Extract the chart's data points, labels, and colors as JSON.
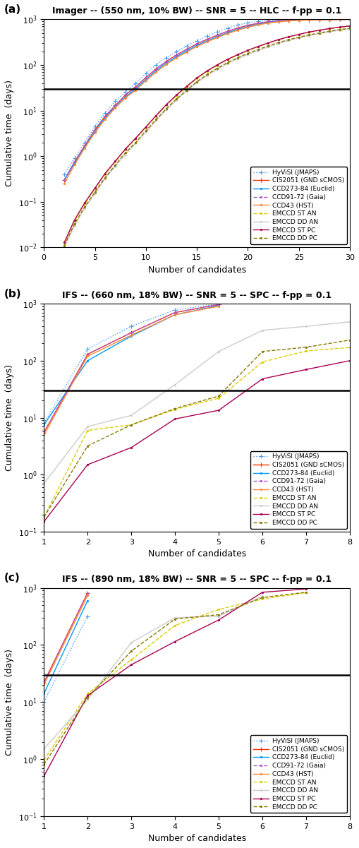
{
  "panels": [
    {
      "label": "(a)",
      "title": "Imager -- (550 nm, 10% BW) -- SNR = 5 -- HLC -- f-pp = 0.1",
      "xmin": 0,
      "xmax": 30,
      "ymin": 0.01,
      "ymax": 1000,
      "xlabel": "Number of candidates",
      "ylabel": "Cumulative time  (days)",
      "hline": 30,
      "xticks": [
        0,
        5,
        10,
        15,
        20,
        25,
        30
      ],
      "series": [
        {
          "name": "HyViSI (JMAPS)",
          "color": "#4499ff",
          "linestyle": ":",
          "marker": "+",
          "x": [
            2,
            3,
            4,
            5,
            6,
            7,
            8,
            9,
            10,
            11,
            12,
            13,
            14,
            15,
            16,
            17,
            18,
            19,
            20,
            21,
            22,
            23,
            24,
            25,
            26,
            27,
            28,
            29,
            30
          ],
          "y": [
            0.4,
            0.9,
            2.0,
            4.5,
            9,
            16,
            26,
            40,
            65,
            100,
            145,
            195,
            260,
            340,
            430,
            530,
            640,
            750,
            840,
            900,
            940,
            965,
            978,
            987,
            992,
            996,
            998,
            999,
            1000
          ]
        },
        {
          "name": "CIS2051 (GND sCMOS)",
          "color": "#ff3300",
          "linestyle": "-",
          "marker": "+",
          "x": [
            2,
            3,
            4,
            5,
            6,
            7,
            8,
            9,
            10,
            11,
            12,
            13,
            14,
            15,
            16,
            17,
            18,
            19,
            20,
            21,
            22,
            23,
            24,
            25,
            26,
            27,
            28,
            29,
            30
          ],
          "y": [
            0.3,
            0.75,
            1.7,
            3.8,
            7.5,
            13,
            22,
            33,
            53,
            82,
            120,
            165,
            220,
            290,
            365,
            450,
            545,
            645,
            740,
            820,
            882,
            925,
            955,
            972,
            983,
            990,
            994,
            997,
            999
          ]
        },
        {
          "name": "CCD273-84 (Euclid)",
          "color": "#0099ff",
          "linestyle": "-",
          "marker": ".",
          "x": [
            2,
            3,
            4,
            5,
            6,
            7,
            8,
            9,
            10,
            11,
            12,
            13,
            14,
            15,
            16,
            17,
            18,
            19,
            20,
            21,
            22,
            23,
            24,
            25,
            26,
            27,
            28,
            29,
            30
          ],
          "y": [
            0.3,
            0.7,
            1.6,
            3.5,
            7,
            12,
            20,
            30,
            48,
            75,
            110,
            152,
            203,
            268,
            338,
            415,
            505,
            600,
            695,
            778,
            848,
            900,
            935,
            960,
            975,
            985,
            991,
            995,
            998
          ]
        },
        {
          "name": "CCD91-72 (Gaia)",
          "color": "#aa55cc",
          "linestyle": "--",
          "marker": ".",
          "x": [
            2,
            3,
            4,
            5,
            6,
            7,
            8,
            9,
            10,
            11,
            12,
            13,
            14,
            15,
            16,
            17,
            18,
            19,
            20,
            21,
            22,
            23,
            24,
            25,
            26,
            27,
            28,
            29,
            30
          ],
          "y": [
            0.3,
            0.75,
            1.7,
            3.8,
            7.5,
            13,
            22,
            33,
            53,
            82,
            120,
            165,
            220,
            290,
            365,
            450,
            545,
            645,
            740,
            820,
            882,
            925,
            955,
            972,
            983,
            990,
            994,
            997,
            999
          ]
        },
        {
          "name": "CCD43 (HST)",
          "color": "#ff8833",
          "linestyle": "-",
          "marker": ".",
          "x": [
            2,
            3,
            4,
            5,
            6,
            7,
            8,
            9,
            10,
            11,
            12,
            13,
            14,
            15,
            16,
            17,
            18,
            19,
            20,
            21,
            22,
            23,
            24,
            25,
            26,
            27,
            28,
            29,
            30
          ],
          "y": [
            0.25,
            0.65,
            1.5,
            3.3,
            6.5,
            11.5,
            19,
            28,
            45,
            70,
            103,
            143,
            192,
            254,
            322,
            398,
            485,
            578,
            672,
            756,
            830,
            882,
            924,
            952,
            970,
            982,
            989,
            994,
            997
          ]
        },
        {
          "name": "EMCCD ST AN",
          "color": "#ddcc00",
          "linestyle": "--",
          "marker": ".",
          "x": [
            2,
            3,
            4,
            5,
            6,
            7,
            8,
            9,
            10,
            11,
            12,
            13,
            14,
            15,
            16,
            17,
            18,
            19,
            20,
            21,
            22,
            23,
            24,
            25,
            26,
            27,
            28,
            29,
            30
          ],
          "y": [
            0.012,
            0.038,
            0.09,
            0.19,
            0.4,
            0.75,
            1.4,
            2.4,
            4.2,
            7.5,
            13,
            21,
            33,
            50,
            72,
            98,
            130,
            165,
            205,
            250,
            300,
            355,
            410,
            465,
            520,
            572,
            622,
            668,
            712
          ]
        },
        {
          "name": "EMCCD DD AN",
          "color": "#cccccc",
          "linestyle": "-",
          "marker": ".",
          "x": [
            2,
            3,
            4,
            5,
            6,
            7,
            8,
            9,
            10,
            11,
            12,
            13,
            14,
            15,
            16,
            17,
            18,
            19,
            20,
            21,
            22,
            23,
            24,
            25,
            26,
            27,
            28,
            29,
            30
          ],
          "y": [
            0.01,
            0.03,
            0.072,
            0.15,
            0.32,
            0.6,
            1.1,
            1.9,
            3.4,
            6,
            10.5,
            17,
            27,
            41,
            59,
            80,
            107,
            136,
            170,
            207,
            249,
            295,
            342,
            390,
            438,
            485,
            532,
            577,
            620
          ]
        },
        {
          "name": "EMCCD ST PC",
          "color": "#aa0055",
          "linestyle": "-",
          "marker": ".",
          "x": [
            2,
            3,
            4,
            5,
            6,
            7,
            8,
            9,
            10,
            11,
            12,
            13,
            14,
            15,
            16,
            17,
            18,
            19,
            20,
            21,
            22,
            23,
            24,
            25,
            26,
            27,
            28,
            29,
            30
          ],
          "y": [
            0.013,
            0.04,
            0.095,
            0.2,
            0.42,
            0.78,
            1.45,
            2.5,
            4.4,
            7.8,
            13.5,
            22,
            34,
            52,
            74,
            101,
            133,
            168,
            210,
            255,
            305,
            360,
            415,
            470,
            526,
            578,
            628,
            674,
            718
          ]
        },
        {
          "name": "EMCCD DD PC",
          "color": "#887700",
          "linestyle": "--",
          "marker": ".",
          "x": [
            2,
            3,
            4,
            5,
            6,
            7,
            8,
            9,
            10,
            11,
            12,
            13,
            14,
            15,
            16,
            17,
            18,
            19,
            20,
            21,
            22,
            23,
            24,
            25,
            26,
            27,
            28,
            29,
            30
          ],
          "y": [
            0.011,
            0.033,
            0.078,
            0.163,
            0.34,
            0.64,
            1.2,
            2.0,
            3.6,
            6.4,
            11,
            18,
            28,
            43,
            62,
            85,
            113,
            144,
            180,
            218,
            262,
            310,
            358,
            407,
            456,
            503,
            550,
            595,
            638
          ]
        }
      ]
    },
    {
      "label": "(b)",
      "title": "IFS -- (660 nm, 18% BW) -- SNR = 5 -- SPC -- f-pp = 0.1",
      "xmin": 1,
      "xmax": 8,
      "ymin": 0.1,
      "ymax": 1000,
      "xlabel": "Number of candidates",
      "ylabel": "Cumulative time  (days)",
      "hline": 30,
      "xticks": [
        1,
        2,
        3,
        4,
        5,
        6,
        7,
        8
      ],
      "series": [
        {
          "name": "HyViSI (JMAPS)",
          "color": "#4499ff",
          "linestyle": ":",
          "marker": "+",
          "x": [
            1,
            2,
            3,
            4,
            5
          ],
          "y": [
            8.0,
            160,
            400,
            780,
            980
          ]
        },
        {
          "name": "CIS2051 (GND sCMOS)",
          "color": "#ff3300",
          "linestyle": "-",
          "marker": "+",
          "x": [
            1,
            2,
            3,
            4,
            5
          ],
          "y": [
            5.5,
            130,
            310,
            700,
            960
          ]
        },
        {
          "name": "CCD273-84 (Euclid)",
          "color": "#0099ff",
          "linestyle": "-",
          "marker": ".",
          "x": [
            1,
            2,
            3,
            4,
            5
          ],
          "y": [
            7.5,
            100,
            270,
            640,
            920
          ]
        },
        {
          "name": "CCD91-72 (Gaia)",
          "color": "#aa55cc",
          "linestyle": "--",
          "marker": ".",
          "x": [
            1,
            2,
            3,
            4,
            5
          ],
          "y": [
            5.5,
            130,
            310,
            700,
            960
          ]
        },
        {
          "name": "CCD43 (HST)",
          "color": "#ff8833",
          "linestyle": "-",
          "marker": ".",
          "x": [
            1,
            2,
            3,
            4,
            5
          ],
          "y": [
            5.0,
            120,
            280,
            640,
            900
          ]
        },
        {
          "name": "EMCCD ST AN",
          "color": "#ddcc00",
          "linestyle": "--",
          "marker": ".",
          "x": [
            1,
            2,
            3,
            4,
            5,
            6,
            7,
            8
          ],
          "y": [
            0.18,
            6.0,
            7.5,
            14,
            22,
            95,
            148,
            170
          ]
        },
        {
          "name": "EMCCD DD AN",
          "color": "#cccccc",
          "linestyle": "-",
          "marker": ".",
          "x": [
            1,
            2,
            3,
            4,
            5,
            6,
            7,
            8
          ],
          "y": [
            0.7,
            7.0,
            11,
            38,
            145,
            340,
            400,
            480
          ]
        },
        {
          "name": "EMCCD ST PC",
          "color": "#aa0055",
          "linestyle": "-",
          "marker": ".",
          "x": [
            1,
            2,
            3,
            4,
            5,
            6,
            7,
            8
          ],
          "y": [
            0.15,
            1.5,
            3.0,
            9.5,
            13.5,
            48,
            70,
            100
          ]
        },
        {
          "name": "EMCCD DD PC",
          "color": "#887700",
          "linestyle": "--",
          "marker": ".",
          "x": [
            1,
            2,
            3,
            4,
            5,
            6,
            7,
            8
          ],
          "y": [
            0.18,
            3.2,
            7.5,
            14.5,
            24,
            145,
            172,
            230
          ]
        }
      ]
    },
    {
      "label": "(c)",
      "title": "IFS -- (890 nm, 18% BW) -- SNR = 5 -- SPC -- f-pp = 0.1",
      "xmin": 1,
      "xmax": 8,
      "ymin": 0.1,
      "ymax": 1000,
      "xlabel": "Number of candidates",
      "ylabel": "Cumulative time  (days)",
      "hline": 30,
      "xticks": [
        1,
        2,
        3,
        4,
        5,
        6,
        7,
        8
      ],
      "series": [
        {
          "name": "HyViSI (JMAPS)",
          "color": "#4499ff",
          "linestyle": ":",
          "marker": "+",
          "x": [
            1,
            2
          ],
          "y": [
            10.0,
            320
          ]
        },
        {
          "name": "CIS2051 (GND sCMOS)",
          "color": "#ff3300",
          "linestyle": "-",
          "marker": "+",
          "x": [
            1,
            2
          ],
          "y": [
            22.0,
            820
          ]
        },
        {
          "name": "CCD273-84 (Euclid)",
          "color": "#0099ff",
          "linestyle": "-",
          "marker": ".",
          "x": [
            1,
            2
          ],
          "y": [
            14.0,
            600
          ]
        },
        {
          "name": "CCD91-72 (Gaia)",
          "color": "#aa55cc",
          "linestyle": "--",
          "marker": ".",
          "x": [
            1,
            2
          ],
          "y": [
            22.0,
            820
          ]
        },
        {
          "name": "CCD43 (HST)",
          "color": "#ff8833",
          "linestyle": "-",
          "marker": ".",
          "x": [
            1,
            2
          ],
          "y": [
            20.0,
            740
          ]
        },
        {
          "name": "EMCCD ST AN",
          "color": "#ddcc00",
          "linestyle": "--",
          "marker": ".",
          "x": [
            1,
            2,
            3,
            4,
            5,
            6,
            7
          ],
          "y": [
            0.95,
            14,
            55,
            220,
            420,
            640,
            830
          ]
        },
        {
          "name": "EMCCD DD AN",
          "color": "#cccccc",
          "linestyle": "-",
          "marker": ".",
          "x": [
            1,
            2,
            3,
            4,
            5,
            6
          ],
          "y": [
            1.5,
            11,
            110,
            300,
            320,
            720
          ]
        },
        {
          "name": "EMCCD ST PC",
          "color": "#aa0055",
          "linestyle": "-",
          "marker": ".",
          "x": [
            1,
            2,
            3,
            4,
            5,
            6,
            7
          ],
          "y": [
            0.5,
            13,
            45,
            115,
            275,
            840,
            960
          ]
        },
        {
          "name": "EMCCD DD PC",
          "color": "#887700",
          "linestyle": "--",
          "marker": ".",
          "x": [
            1,
            2,
            3,
            4,
            5,
            6,
            7
          ],
          "y": [
            0.8,
            12,
            78,
            285,
            340,
            680,
            840
          ]
        }
      ]
    }
  ],
  "legend_labels": [
    "HyViSI (JMAPS)",
    "CIS2051 (GND sCMOS)",
    "CCD273-84 (Euclid)",
    "CCD91-72 (Gaia)",
    "CCD43 (HST)",
    "EMCCD ST AN",
    "EMCCD DD AN",
    "EMCCD ST PC",
    "EMCCD DD PC"
  ],
  "legend_colors": [
    "#4499ff",
    "#ff3300",
    "#0099ff",
    "#aa55cc",
    "#ff8833",
    "#ddcc00",
    "#cccccc",
    "#aa0055",
    "#887700"
  ],
  "legend_linestyles": [
    ":",
    "-",
    "-",
    "--",
    "-",
    "--",
    "-",
    "-",
    "--"
  ],
  "legend_markers": [
    "+",
    "+",
    ".",
    ".",
    ".",
    ".",
    ".",
    ".",
    "."
  ]
}
